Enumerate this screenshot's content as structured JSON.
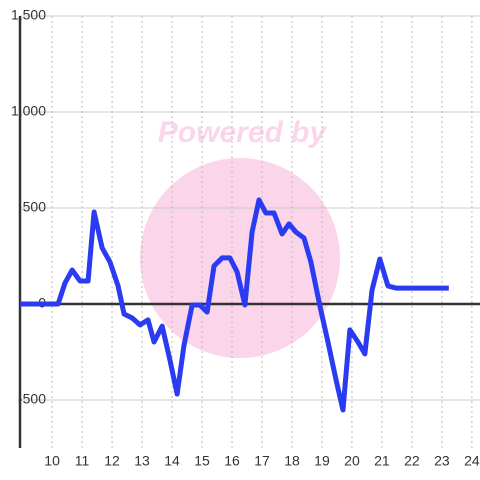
{
  "chart_data": {
    "type": "line",
    "watermark": "Powered by",
    "xlim": [
      8.93,
      24.27
    ],
    "xticks": [
      10,
      11,
      12,
      13,
      14,
      15,
      16,
      17,
      18,
      19,
      20,
      21,
      22,
      23,
      24
    ],
    "ylim": [
      -750,
      1500
    ],
    "yticks": [
      {
        "value": 1500,
        "label": "1,500"
      },
      {
        "value": 1000,
        "label": "1,000"
      },
      500,
      0,
      -500
    ],
    "grid": true,
    "series": [
      {
        "color": "#2b3bf2",
        "x": [
          8.93,
          10.2,
          10.43,
          10.67,
          10.93,
          11.2,
          11.4,
          11.67,
          11.93,
          12.2,
          12.4,
          12.67,
          12.93,
          13.2,
          13.4,
          13.67,
          13.93,
          14.17,
          14.4,
          14.67,
          14.93,
          15.17,
          15.4,
          15.67,
          15.93,
          16.17,
          16.43,
          16.67,
          16.9,
          17.13,
          17.4,
          17.67,
          17.9,
          18.13,
          18.4,
          18.63,
          18.93,
          19.2,
          19.47,
          19.7,
          19.93,
          20.2,
          20.43,
          20.67,
          20.93,
          21.2,
          21.47,
          21.93,
          23.23
        ],
        "values": [
          0,
          0,
          109,
          177,
          120,
          120,
          479,
          292,
          219,
          94,
          -52,
          -73,
          -109,
          -83,
          -198,
          -115,
          -292,
          -469,
          -214,
          -5,
          -5,
          -42,
          198,
          240,
          240,
          167,
          -5,
          375,
          542,
          474,
          474,
          365,
          417,
          375,
          344,
          219,
          -10,
          -198,
          -396,
          -552,
          -135,
          -198,
          -260,
          73,
          234,
          94,
          83,
          83,
          83
        ]
      }
    ]
  }
}
